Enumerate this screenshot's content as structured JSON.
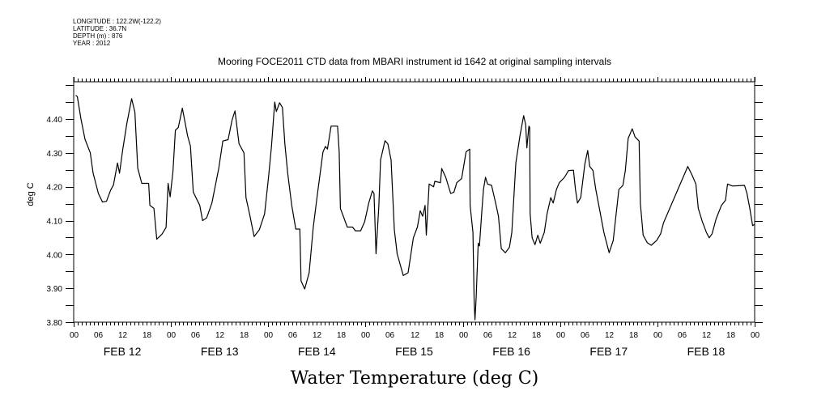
{
  "header": {
    "longitude": "LONGITUDE : 122.2W(-122.2)",
    "latitude": "LATITUDE : 36.7N",
    "depth": "DEPTH (m) : 876",
    "year": "YEAR : 2012"
  },
  "chart_data": {
    "type": "line",
    "title": "Mooring FOCE2011 CTD data from MBARI instrument id 1642 at original sampling intervals",
    "xlabel": "Water Temperature (deg C)",
    "ylabel": "deg C",
    "x_units": "hours since FEB 12 00:00",
    "xlim": [
      0,
      168
    ],
    "ylim": [
      3.8,
      4.51
    ],
    "yticks": [
      3.8,
      3.9,
      4.0,
      4.1,
      4.2,
      4.3,
      4.4
    ],
    "ytick_labels": [
      "3.80",
      "3.90",
      "4.00",
      "4.10",
      "4.20",
      "4.30",
      "4.40"
    ],
    "hour_labels": [
      "00",
      "06",
      "12",
      "18"
    ],
    "day_labels": [
      "FEB 12",
      "FEB 13",
      "FEB 14",
      "FEB 15",
      "FEB 16",
      "FEB 17",
      "FEB 18"
    ],
    "grid": false,
    "line_color": "#000000",
    "series": [
      {
        "name": "Water Temperature",
        "points": [
          [
            0.5,
            4.47
          ],
          [
            0.9,
            4.466
          ],
          [
            1.8,
            4.4
          ],
          [
            2.8,
            4.34
          ],
          [
            4.1,
            4.3
          ],
          [
            4.8,
            4.24
          ],
          [
            6.1,
            4.18
          ],
          [
            7.1,
            4.155
          ],
          [
            8.1,
            4.157
          ],
          [
            9.1,
            4.19
          ],
          [
            9.8,
            4.205
          ],
          [
            10.8,
            4.27
          ],
          [
            11.3,
            4.24
          ],
          [
            12.1,
            4.31
          ],
          [
            13.1,
            4.386
          ],
          [
            14.3,
            4.46
          ],
          [
            15.1,
            4.42
          ],
          [
            15.8,
            4.255
          ],
          [
            16.8,
            4.21
          ],
          [
            18.5,
            4.21
          ],
          [
            18.8,
            4.145
          ],
          [
            19.8,
            4.136
          ],
          [
            20.5,
            4.045
          ],
          [
            21.8,
            4.06
          ],
          [
            22.8,
            4.08
          ],
          [
            23.3,
            4.21
          ],
          [
            23.8,
            4.17
          ],
          [
            24.5,
            4.245
          ],
          [
            25.1,
            4.367
          ],
          [
            25.8,
            4.375
          ],
          [
            26.8,
            4.432
          ],
          [
            28.1,
            4.35
          ],
          [
            28.8,
            4.32
          ],
          [
            29.5,
            4.184
          ],
          [
            31.1,
            4.145
          ],
          [
            31.8,
            4.1
          ],
          [
            32.8,
            4.108
          ],
          [
            34.1,
            4.152
          ],
          [
            35.8,
            4.255
          ],
          [
            36.8,
            4.335
          ],
          [
            38.1,
            4.339
          ],
          [
            39.1,
            4.398
          ],
          [
            39.8,
            4.424
          ],
          [
            40.8,
            4.327
          ],
          [
            42.0,
            4.3
          ],
          [
            42.5,
            4.168
          ],
          [
            43.5,
            4.113
          ],
          [
            44.5,
            4.053
          ],
          [
            45.8,
            4.073
          ],
          [
            47.1,
            4.12
          ],
          [
            48.1,
            4.232
          ],
          [
            48.8,
            4.32
          ],
          [
            49.6,
            4.45
          ],
          [
            50.0,
            4.422
          ],
          [
            50.8,
            4.448
          ],
          [
            51.5,
            4.434
          ],
          [
            52.1,
            4.327
          ],
          [
            52.8,
            4.24
          ],
          [
            53.8,
            4.145
          ],
          [
            54.8,
            4.075
          ],
          [
            55.8,
            4.075
          ],
          [
            56.1,
            3.922
          ],
          [
            57.0,
            3.898
          ],
          [
            58.1,
            3.946
          ],
          [
            59.1,
            4.081
          ],
          [
            60.1,
            4.176
          ],
          [
            61.5,
            4.303
          ],
          [
            62.1,
            4.319
          ],
          [
            62.6,
            4.311
          ],
          [
            63.5,
            4.379
          ],
          [
            65.1,
            4.379
          ],
          [
            65.5,
            4.303
          ],
          [
            65.8,
            4.136
          ],
          [
            67.5,
            4.081
          ],
          [
            68.8,
            4.081
          ],
          [
            69.5,
            4.07
          ],
          [
            70.8,
            4.07
          ],
          [
            71.8,
            4.097
          ],
          [
            72.8,
            4.152
          ],
          [
            73.7,
            4.188
          ],
          [
            74.1,
            4.18
          ],
          [
            74.6,
            4.002
          ],
          [
            75.3,
            4.145
          ],
          [
            75.7,
            4.279
          ],
          [
            76.8,
            4.336
          ],
          [
            77.5,
            4.327
          ],
          [
            78.3,
            4.279
          ],
          [
            79.1,
            4.073
          ],
          [
            79.8,
            4.002
          ],
          [
            81.3,
            3.938
          ],
          [
            82.5,
            3.946
          ],
          [
            83.8,
            4.049
          ],
          [
            84.8,
            4.081
          ],
          [
            85.5,
            4.129
          ],
          [
            86.1,
            4.113
          ],
          [
            86.7,
            4.145
          ],
          [
            87.0,
            4.057
          ],
          [
            87.7,
            4.208
          ],
          [
            88.8,
            4.2
          ],
          [
            89.1,
            4.216
          ],
          [
            90.5,
            4.212
          ],
          [
            90.8,
            4.254
          ],
          [
            91.8,
            4.228
          ],
          [
            93.0,
            4.18
          ],
          [
            93.8,
            4.184
          ],
          [
            94.5,
            4.212
          ],
          [
            95.7,
            4.224
          ],
          [
            96.8,
            4.303
          ],
          [
            97.7,
            4.311
          ],
          [
            97.8,
            4.145
          ],
          [
            98.5,
            4.065
          ],
          [
            98.8,
            3.859
          ],
          [
            99.0,
            3.807
          ],
          [
            99.3,
            3.875
          ],
          [
            99.8,
            4.033
          ],
          [
            100.1,
            4.025
          ],
          [
            100.7,
            4.129
          ],
          [
            101.1,
            4.192
          ],
          [
            101.6,
            4.228
          ],
          [
            102.1,
            4.208
          ],
          [
            103.1,
            4.204
          ],
          [
            104.1,
            4.152
          ],
          [
            104.8,
            4.113
          ],
          [
            105.5,
            4.017
          ],
          [
            106.5,
            4.005
          ],
          [
            107.5,
            4.021
          ],
          [
            108.1,
            4.065
          ],
          [
            109.1,
            4.271
          ],
          [
            110.1,
            4.351
          ],
          [
            111.0,
            4.41
          ],
          [
            111.5,
            4.383
          ],
          [
            111.8,
            4.315
          ],
          [
            112.3,
            4.379
          ],
          [
            112.5,
            4.375
          ],
          [
            112.6,
            4.121
          ],
          [
            113.1,
            4.049
          ],
          [
            113.8,
            4.029
          ],
          [
            114.5,
            4.057
          ],
          [
            115.1,
            4.033
          ],
          [
            116.1,
            4.065
          ],
          [
            116.8,
            4.121
          ],
          [
            117.7,
            4.168
          ],
          [
            118.3,
            4.152
          ],
          [
            119.1,
            4.192
          ],
          [
            119.8,
            4.212
          ],
          [
            121.1,
            4.228
          ],
          [
            122.1,
            4.248
          ],
          [
            123.3,
            4.249
          ],
          [
            123.8,
            4.192
          ],
          [
            124.3,
            4.152
          ],
          [
            125.1,
            4.168
          ],
          [
            126.1,
            4.267
          ],
          [
            126.8,
            4.307
          ],
          [
            127.3,
            4.26
          ],
          [
            128.1,
            4.248
          ],
          [
            128.8,
            4.192
          ],
          [
            129.8,
            4.129
          ],
          [
            130.8,
            4.065
          ],
          [
            132.1,
            4.005
          ],
          [
            133.1,
            4.041
          ],
          [
            134.5,
            4.192
          ],
          [
            135.5,
            4.204
          ],
          [
            136.1,
            4.248
          ],
          [
            136.8,
            4.343
          ],
          [
            137.8,
            4.371
          ],
          [
            138.5,
            4.347
          ],
          [
            139.5,
            4.335
          ],
          [
            139.8,
            4.152
          ],
          [
            140.5,
            4.057
          ],
          [
            141.5,
            4.035
          ],
          [
            142.5,
            4.027
          ],
          [
            143.8,
            4.041
          ],
          [
            144.8,
            4.061
          ],
          [
            145.5,
            4.093
          ],
          [
            151.5,
            4.26
          ],
          [
            152.5,
            4.236
          ],
          [
            153.5,
            4.208
          ],
          [
            154.1,
            4.136
          ],
          [
            155.1,
            4.097
          ],
          [
            156.1,
            4.065
          ],
          [
            156.8,
            4.049
          ],
          [
            157.5,
            4.061
          ],
          [
            158.5,
            4.105
          ],
          [
            159.8,
            4.145
          ],
          [
            160.8,
            4.16
          ],
          [
            161.3,
            4.208
          ],
          [
            162.5,
            4.202
          ],
          [
            165.5,
            4.204
          ],
          [
            166.1,
            4.18
          ],
          [
            166.8,
            4.136
          ],
          [
            167.5,
            4.085
          ],
          [
            168.0,
            4.089
          ]
        ]
      }
    ]
  }
}
